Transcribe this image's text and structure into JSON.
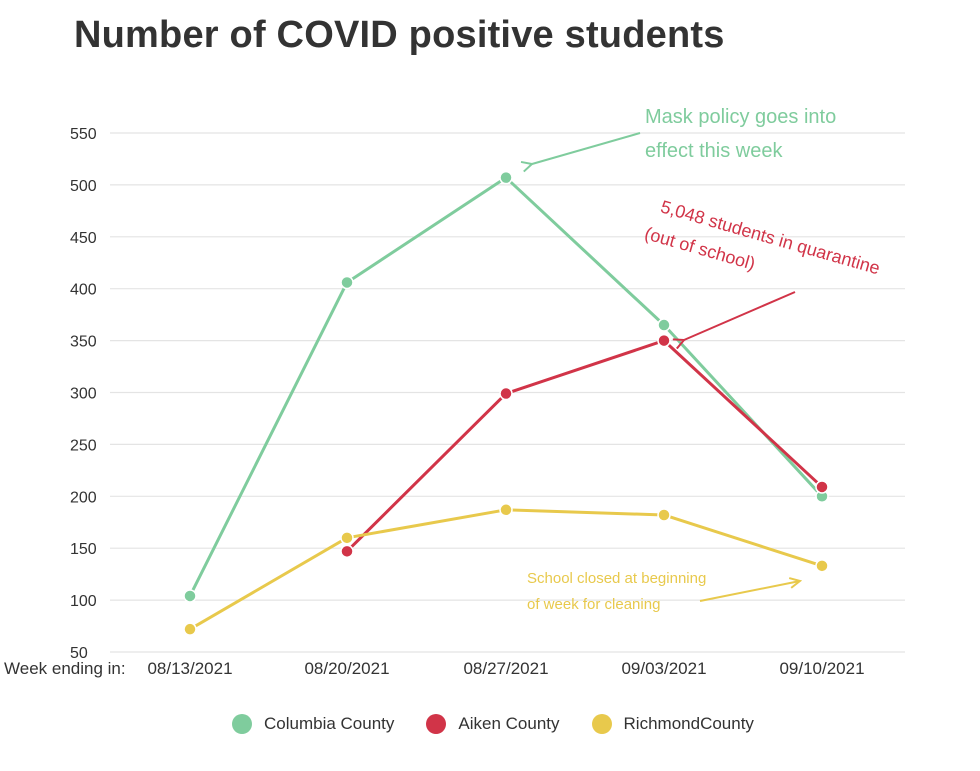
{
  "chart_data": {
    "type": "line",
    "title": "Number of COVID positive students",
    "xlabel": "Week ending in:",
    "ylabel": "",
    "categories": [
      "08/13/2021",
      "08/20/2021",
      "08/27/2021",
      "09/03/2021",
      "09/10/2021"
    ],
    "yticks": [
      50,
      100,
      150,
      200,
      250,
      300,
      350,
      400,
      450,
      500,
      550
    ],
    "ylim": [
      50,
      550
    ],
    "grid": true,
    "legend_position": "bottom",
    "series": [
      {
        "name": "Columbia County",
        "color": "#7fcc9d",
        "values": [
          104,
          406,
          507,
          365,
          200
        ]
      },
      {
        "name": "Aiken County",
        "color": "#d13448",
        "values": [
          null,
          147,
          299,
          350,
          209
        ]
      },
      {
        "name": "RichmondCounty",
        "color": "#e8c94c",
        "values": [
          72,
          160,
          187,
          182,
          133
        ]
      }
    ],
    "annotations": [
      {
        "lines": [
          "Mask policy goes into",
          "effect this week"
        ],
        "color": "#7fcc9d"
      },
      {
        "lines": [
          "5,048 students in quarantine",
          "(out of school)"
        ],
        "color": "#d13448"
      },
      {
        "lines": [
          "School closed at beginning",
          "of week for cleaning"
        ],
        "color": "#e8c94c"
      }
    ]
  }
}
